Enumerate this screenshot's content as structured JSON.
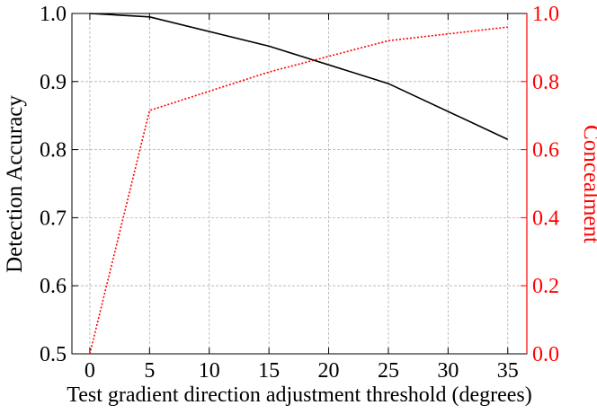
{
  "chart_data": {
    "type": "line",
    "x_label": "Test gradient direction adjustment threshold (degrees)",
    "y_label": "Detection Accuracy",
    "y2_label": "Concealment",
    "x": [
      0,
      5,
      15,
      25,
      35
    ],
    "series": [
      {
        "name": "Detection Accuracy",
        "color": "#000000",
        "values": [
          1.0,
          0.995,
          0.952,
          0.897,
          0.815
        ]
      },
      {
        "name": "Concealment",
        "color": "#ff0000",
        "axis": "y2",
        "values": [
          0.0,
          0.715,
          0.828,
          0.92,
          0.96
        ]
      }
    ],
    "xlim": [
      -1.5,
      36.6
    ],
    "xticks": [
      0,
      5,
      10,
      15,
      20,
      25,
      30,
      35
    ],
    "ylim": [
      0.5,
      1.0
    ],
    "yticks": [
      {
        "value": 0.5,
        "label": "0.5"
      },
      0.6,
      0.7,
      0.8,
      0.9,
      {
        "value": 1.0,
        "label": "1.0"
      }
    ],
    "y2lim": [
      0,
      1.0
    ],
    "y2ticks": [
      {
        "value": 0,
        "label": "0.0"
      },
      0.2,
      0.4,
      0.6,
      0.8,
      {
        "value": 1.0,
        "label": "1.0"
      }
    ],
    "grid": true
  }
}
